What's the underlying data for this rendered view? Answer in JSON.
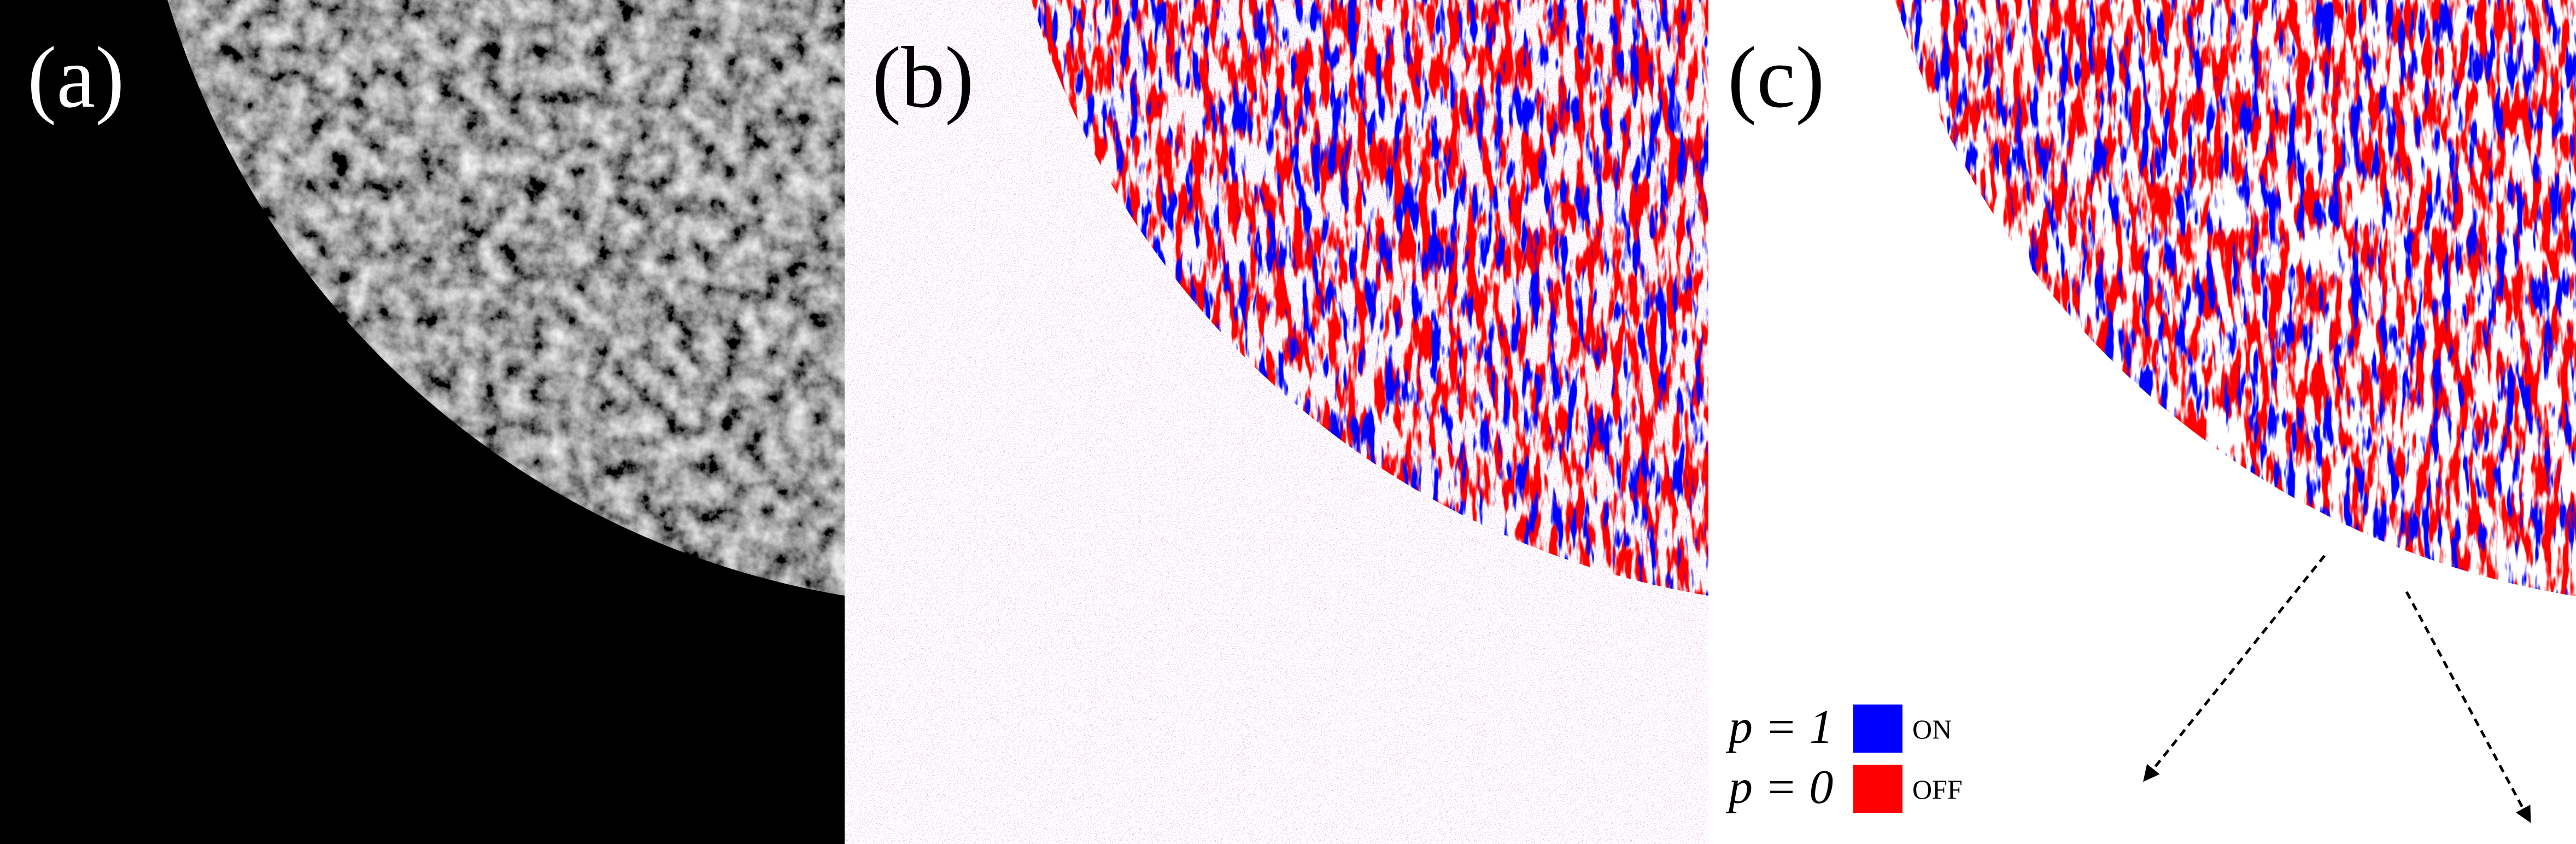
{
  "panels": [
    {
      "label": "(a)"
    },
    {
      "label": "(b)"
    },
    {
      "label": "(c)"
    }
  ],
  "legend": [
    {
      "symbol": "p = 1",
      "label": "ON",
      "color": "#0000ff"
    },
    {
      "symbol": "p = 0",
      "label": "OFF",
      "color": "#ff0000"
    }
  ]
}
